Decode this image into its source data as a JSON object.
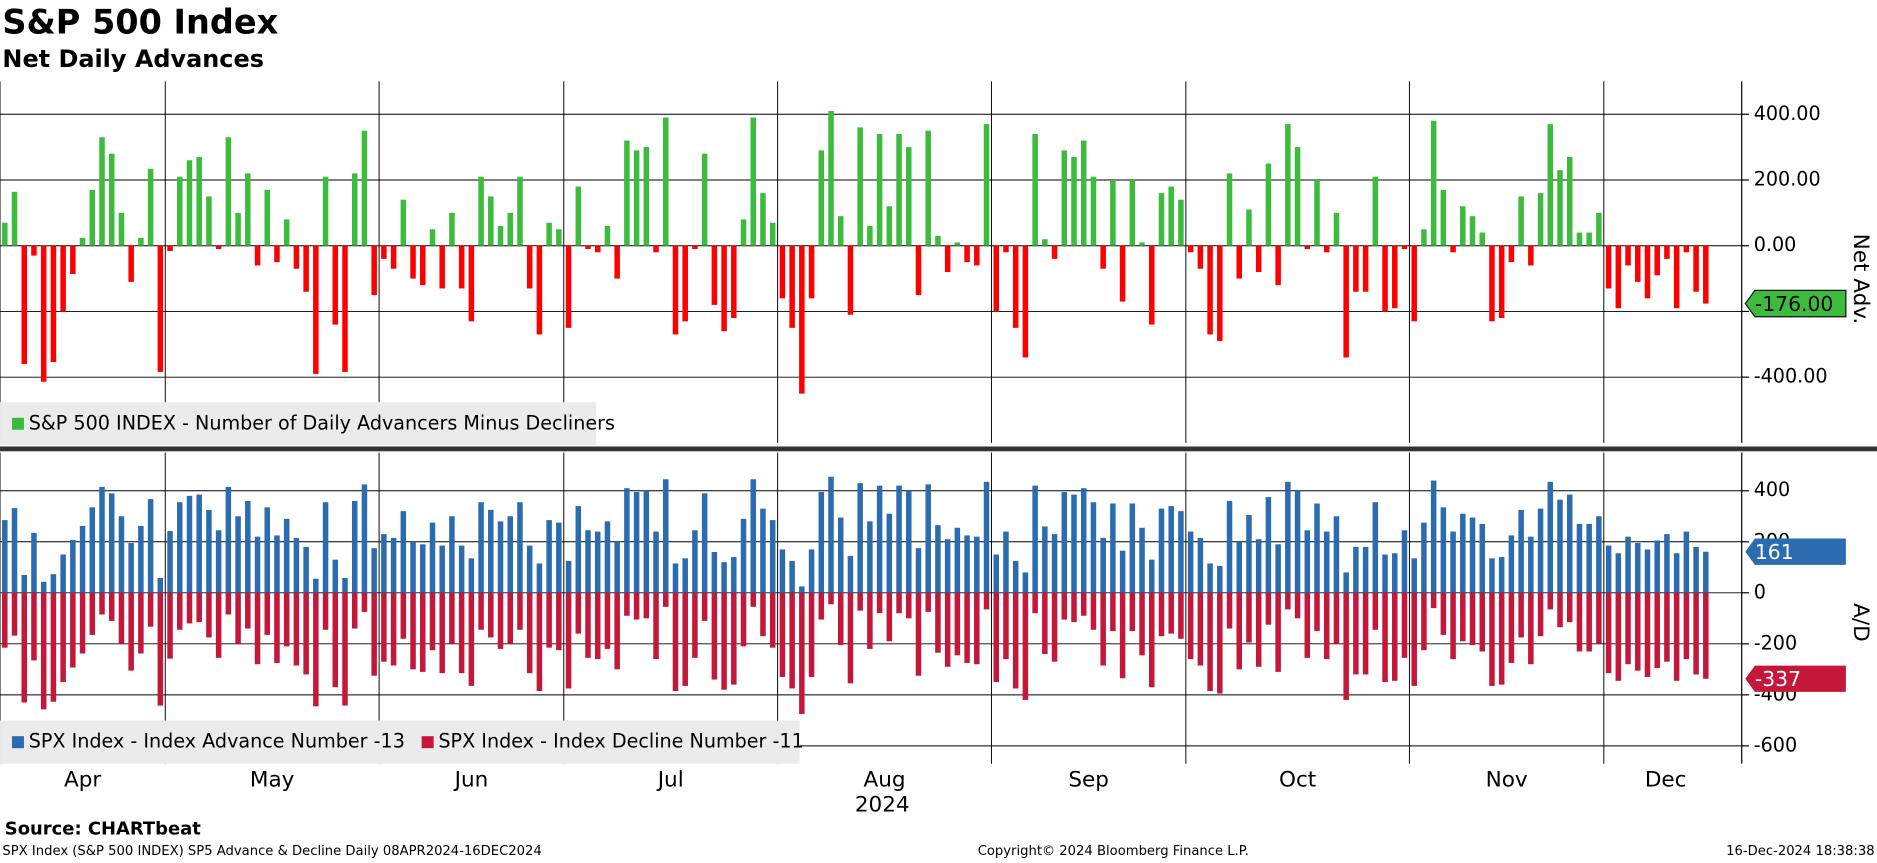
{
  "chart_data": [
    {
      "type": "bar",
      "title": "S&P 500 Index",
      "subtitle": "Net Daily Advances",
      "y_label": "Net Adv.",
      "ylim": [
        -600,
        500
      ],
      "yticks": [
        {
          "value": -400,
          "label": "-400.00"
        },
        {
          "value": -200,
          "label": "-200.00"
        },
        {
          "value": 0,
          "label": "0.00"
        },
        {
          "value": 200,
          "label": "200.00"
        },
        {
          "value": 400,
          "label": "400.00"
        }
      ],
      "grid": true,
      "series": [
        {
          "name": "S&P 500 INDEX - Number of Daily Advancers Minus Decliners",
          "color": "#3dbb3d",
          "negative_color": "#ff0000",
          "last_value_label": "-176.00",
          "values": [
            70,
            164,
            -360,
            -30,
            -414,
            -354,
            -200,
            -86,
            24,
            170,
            330,
            280,
            100,
            -110,
            24,
            234,
            -384,
            -16,
            210,
            260,
            270,
            150,
            -10,
            330,
            100,
            220,
            -60,
            170,
            -50,
            80,
            -70,
            -140,
            -390,
            210,
            -240,
            -384,
            220,
            350,
            -150,
            -40,
            -70,
            140,
            -100,
            -120,
            50,
            -130,
            100,
            -130,
            -230,
            210,
            150,
            60,
            100,
            210,
            -130,
            -270,
            70,
            50,
            -250,
            180,
            -10,
            -20,
            60,
            -100,
            320,
            290,
            300,
            -20,
            390,
            -270,
            -230,
            -10,
            280,
            -180,
            -260,
            -220,
            80,
            390,
            160,
            70,
            -160,
            -250,
            -450,
            -160,
            290,
            410,
            90,
            -210,
            360,
            60,
            340,
            120,
            340,
            300,
            -150,
            350,
            30,
            -80,
            10,
            -50,
            -60,
            370,
            -200,
            -20,
            -250,
            -340,
            340,
            20,
            -40,
            290,
            270,
            320,
            210,
            -70,
            200,
            -170,
            200,
            10,
            -240,
            160,
            180,
            140,
            -20,
            -70,
            -270,
            -290,
            220,
            -100,
            110,
            -80,
            250,
            -120,
            370,
            300,
            -10,
            200,
            -20,
            100,
            -340,
            -140,
            -140,
            210,
            -200,
            -190,
            -10,
            -230,
            50,
            380,
            170,
            -20,
            120,
            90,
            40,
            -230,
            -220,
            -50,
            150,
            -60,
            160,
            370,
            230,
            270,
            40,
            40,
            100,
            -130,
            -190,
            -60,
            -110,
            -160,
            -90,
            -40,
            -190,
            -20,
            -140,
            -176
          ]
        }
      ]
    },
    {
      "type": "bar",
      "y_label": "A/D",
      "x_label": "2024",
      "ylim": [
        -670,
        550
      ],
      "yticks": [
        -600,
        -400,
        -200,
        0,
        200,
        400
      ],
      "grid": true,
      "xticks": [
        {
          "value": 0,
          "label": "Apr"
        },
        {
          "value": 17,
          "label": "May"
        },
        {
          "value": 39,
          "label": "Jun"
        },
        {
          "value": 58,
          "label": "Jul"
        },
        {
          "value": 80,
          "label": "Aug"
        },
        {
          "value": 102,
          "label": "Sep"
        },
        {
          "value": 122,
          "label": "Oct"
        },
        {
          "value": 145,
          "label": "Nov"
        },
        {
          "value": 165,
          "label": "Dec"
        }
      ],
      "series": [
        {
          "name": "SPX Index - Index Advance Number -13",
          "color": "#2b6cb0",
          "last_value_label": "161",
          "values": [
            285,
            332,
            70,
            235,
            43,
            73,
            150,
            207,
            262,
            335,
            415,
            390,
            300,
            195,
            262,
            367,
            58,
            242,
            355,
            380,
            385,
            325,
            245,
            415,
            300,
            360,
            220,
            335,
            225,
            290,
            215,
            180,
            55,
            355,
            130,
            58,
            360,
            425,
            175,
            230,
            215,
            320,
            200,
            190,
            275,
            185,
            300,
            185,
            135,
            355,
            325,
            280,
            300,
            355,
            185,
            115,
            285,
            275,
            125,
            340,
            245,
            240,
            280,
            200,
            410,
            395,
            400,
            240,
            445,
            115,
            135,
            245,
            390,
            160,
            120,
            140,
            290,
            445,
            330,
            285,
            170,
            125,
            25,
            170,
            395,
            455,
            295,
            145,
            430,
            280,
            420,
            310,
            420,
            400,
            175,
            425,
            265,
            210,
            255,
            225,
            220,
            435,
            150,
            240,
            125,
            80,
            420,
            260,
            230,
            395,
            385,
            410,
            355,
            215,
            350,
            165,
            350,
            255,
            130,
            330,
            340,
            320,
            240,
            215,
            115,
            105,
            360,
            200,
            305,
            210,
            375,
            190,
            435,
            400,
            245,
            350,
            240,
            300,
            80,
            180,
            180,
            355,
            150,
            155,
            245,
            135,
            275,
            440,
            335,
            240,
            310,
            295,
            270,
            135,
            140,
            225,
            325,
            220,
            330,
            435,
            365,
            385,
            270,
            270,
            300,
            185,
            155,
            220,
            195,
            170,
            205,
            230,
            155,
            240,
            180,
            161
          ]
        },
        {
          "name": "SPX Index - Index Decline Number -11",
          "color": "#c4173a",
          "last_value_label": "-337",
          "values": [
            -215,
            -168,
            -430,
            -265,
            -457,
            -427,
            -350,
            -293,
            -238,
            -165,
            -85,
            -110,
            -200,
            -305,
            -238,
            -133,
            -442,
            -258,
            -145,
            -120,
            -115,
            -175,
            -255,
            -85,
            -200,
            -140,
            -280,
            -165,
            -275,
            -210,
            -285,
            -320,
            -445,
            -145,
            -370,
            -442,
            -140,
            -75,
            -325,
            -270,
            -285,
            -180,
            -300,
            -310,
            -225,
            -315,
            -200,
            -315,
            -365,
            -145,
            -175,
            -220,
            -200,
            -145,
            -315,
            -385,
            -215,
            -225,
            -375,
            -160,
            -255,
            -260,
            -220,
            -300,
            -90,
            -105,
            -100,
            -260,
            -55,
            -385,
            -365,
            -255,
            -110,
            -340,
            -380,
            -360,
            -210,
            -55,
            -170,
            -215,
            -330,
            -375,
            -475,
            -330,
            -105,
            -45,
            -205,
            -355,
            -70,
            -220,
            -80,
            -190,
            -80,
            -100,
            -325,
            -75,
            -235,
            -290,
            -245,
            -275,
            -280,
            -65,
            -350,
            -260,
            -375,
            -420,
            -80,
            -240,
            -270,
            -105,
            -115,
            -90,
            -145,
            -285,
            -150,
            -335,
            -150,
            -245,
            -370,
            -170,
            -160,
            -180,
            -260,
            -285,
            -385,
            -395,
            -140,
            -300,
            -195,
            -290,
            -125,
            -310,
            -65,
            -100,
            -255,
            -150,
            -260,
            -200,
            -420,
            -320,
            -320,
            -145,
            -350,
            -345,
            -255,
            -365,
            -225,
            -60,
            -165,
            -260,
            -190,
            -205,
            -230,
            -365,
            -360,
            -275,
            -175,
            -280,
            -170,
            -65,
            -135,
            -115,
            -230,
            -230,
            -200,
            -315,
            -345,
            -280,
            -305,
            -330,
            -295,
            -270,
            -345,
            -260,
            -320,
            -337
          ]
        }
      ]
    }
  ],
  "footer": {
    "source": "Source: CHARTbeat",
    "description": "SPX Index (S&P 500 INDEX) SP5 Advance & Decline  Daily 08APR2024-16DEC2024",
    "copyright": "Copyright© 2024 Bloomberg Finance L.P.",
    "timestamp": "16-Dec-2024 18:38:38"
  }
}
